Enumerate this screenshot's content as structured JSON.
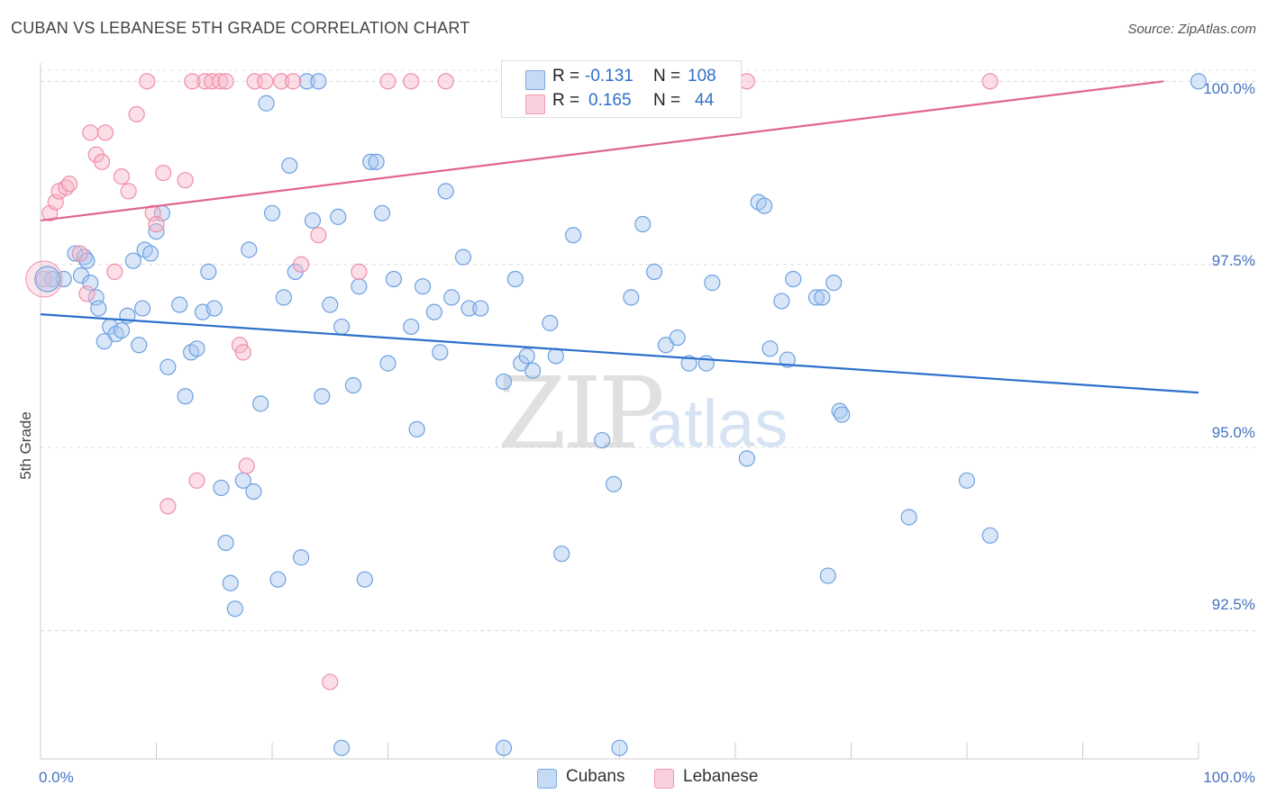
{
  "header": {
    "title": "CUBAN VS LEBANESE 5TH GRADE CORRELATION CHART",
    "source": "Source: ZipAtlas.com"
  },
  "watermark": {
    "zip": "ZIP",
    "atlas": "atlas"
  },
  "legend": {
    "cubans": {
      "r_label": "R =",
      "r_value": "-0.131",
      "n_label": "N =",
      "n_value": "108",
      "color": "#a9c8f0"
    },
    "lebanese": {
      "r_label": "R =",
      "r_value": "0.165",
      "n_label": "N =",
      "n_value": "44",
      "color": "#f6b6c8"
    }
  },
  "bottom_legend": {
    "cubans": "Cubans",
    "lebanese": "Lebanese"
  },
  "chart_data": {
    "type": "scatter",
    "ylabel": "5th Grade",
    "x_tick_labels": [
      "0.0%",
      "100.0%"
    ],
    "y_tick_labels": [
      "100.0%",
      "97.5%",
      "95.0%",
      "92.5%"
    ],
    "xlim": [
      0,
      100
    ],
    "ylim": [
      90.75,
      100.25
    ],
    "y_ticks": [
      100.0,
      97.5,
      95.0,
      92.5
    ],
    "grid": true,
    "series": [
      {
        "name": "Cubans",
        "color": "#6fa1e0",
        "fill": "#a9c8f0",
        "trend": {
          "x0": 0,
          "y0": 96.82,
          "x1": 100,
          "y1": 95.75,
          "color": "#2d6fcb"
        },
        "points": [
          [
            1,
            97.3
          ],
          [
            2,
            97.3
          ],
          [
            3,
            97.65
          ],
          [
            3.5,
            97.35
          ],
          [
            3.8,
            97.6
          ],
          [
            4,
            97.55
          ],
          [
            4.3,
            97.25
          ],
          [
            4.8,
            97.05
          ],
          [
            5,
            96.9
          ],
          [
            5.5,
            96.45
          ],
          [
            6,
            96.65
          ],
          [
            6.5,
            96.55
          ],
          [
            7,
            96.6
          ],
          [
            7.5,
            96.8
          ],
          [
            8,
            97.55
          ],
          [
            8.5,
            96.4
          ],
          [
            8.8,
            96.9
          ],
          [
            9,
            97.7
          ],
          [
            9.5,
            97.65
          ],
          [
            10,
            97.95
          ],
          [
            10.5,
            98.2
          ],
          [
            11,
            96.1
          ],
          [
            12,
            96.95
          ],
          [
            12.5,
            95.7
          ],
          [
            13,
            96.3
          ],
          [
            13.5,
            96.35
          ],
          [
            14,
            96.85
          ],
          [
            14.5,
            97.4
          ],
          [
            15,
            96.9
          ],
          [
            15.6,
            94.45
          ],
          [
            16,
            93.7
          ],
          [
            16.4,
            93.15
          ],
          [
            16.8,
            92.8
          ],
          [
            17.5,
            94.55
          ],
          [
            18,
            97.7
          ],
          [
            18.4,
            94.4
          ],
          [
            19,
            95.6
          ],
          [
            19.5,
            99.7
          ],
          [
            20,
            98.2
          ],
          [
            20.5,
            93.2
          ],
          [
            21,
            97.05
          ],
          [
            21.5,
            98.85
          ],
          [
            22,
            97.4
          ],
          [
            22.5,
            93.5
          ],
          [
            23,
            100
          ],
          [
            23.5,
            98.1
          ],
          [
            24,
            100
          ],
          [
            24.3,
            95.7
          ],
          [
            25,
            96.95
          ],
          [
            25.7,
            98.15
          ],
          [
            26,
            96.65
          ],
          [
            27,
            95.85
          ],
          [
            27.5,
            97.2
          ],
          [
            28,
            93.2
          ],
          [
            28.5,
            98.9
          ],
          [
            29,
            98.9
          ],
          [
            29.5,
            98.2
          ],
          [
            30,
            96.15
          ],
          [
            30.5,
            97.3
          ],
          [
            32,
            96.65
          ],
          [
            32.5,
            95.25
          ],
          [
            33,
            97.2
          ],
          [
            34,
            96.85
          ],
          [
            34.5,
            96.3
          ],
          [
            35,
            98.5
          ],
          [
            35.5,
            97.05
          ],
          [
            36.5,
            97.6
          ],
          [
            37,
            96.9
          ],
          [
            38,
            96.9
          ],
          [
            40,
            95.9
          ],
          [
            41,
            97.3
          ],
          [
            41.5,
            96.15
          ],
          [
            42,
            96.25
          ],
          [
            42.5,
            96.05
          ],
          [
            44,
            96.7
          ],
          [
            44.5,
            96.25
          ],
          [
            45,
            93.55
          ],
          [
            46,
            97.9
          ],
          [
            48.5,
            95.1
          ],
          [
            49.5,
            94.5
          ],
          [
            50,
            90.9
          ],
          [
            51,
            97.05
          ],
          [
            52,
            98.05
          ],
          [
            53,
            97.4
          ],
          [
            54,
            96.4
          ],
          [
            55,
            96.5
          ],
          [
            56,
            96.15
          ],
          [
            57.5,
            96.15
          ],
          [
            58,
            97.25
          ],
          [
            61,
            94.85
          ],
          [
            62,
            98.35
          ],
          [
            62.5,
            98.3
          ],
          [
            63,
            96.35
          ],
          [
            64,
            97.0
          ],
          [
            64.5,
            96.2
          ],
          [
            65,
            97.3
          ],
          [
            67,
            97.05
          ],
          [
            67.5,
            97.05
          ],
          [
            68,
            93.25
          ],
          [
            68.5,
            97.25
          ],
          [
            69,
            95.5
          ],
          [
            69.2,
            95.45
          ],
          [
            75,
            94.05
          ],
          [
            80,
            94.55
          ],
          [
            82,
            93.8
          ],
          [
            40,
            90.9
          ],
          [
            26,
            90.9
          ],
          [
            100,
            100
          ]
        ]
      },
      {
        "name": "Lebanese",
        "color": "#ee8fab",
        "fill": "#f6b6c8",
        "trend": {
          "x0": 0,
          "y0": 98.1,
          "x1": 97,
          "y1": 100.0,
          "color": "#e0668f"
        },
        "points": [
          [
            0.3,
            97.3
          ],
          [
            0.8,
            98.2
          ],
          [
            1.3,
            98.35
          ],
          [
            1.6,
            98.5
          ],
          [
            2.2,
            98.55
          ],
          [
            2.5,
            98.6
          ],
          [
            3.4,
            97.65
          ],
          [
            4,
            97.1
          ],
          [
            4.3,
            99.3
          ],
          [
            4.8,
            99.0
          ],
          [
            5.3,
            98.9
          ],
          [
            5.6,
            99.3
          ],
          [
            6.4,
            97.4
          ],
          [
            7,
            98.7
          ],
          [
            7.6,
            98.5
          ],
          [
            8.3,
            99.55
          ],
          [
            9.2,
            100
          ],
          [
            9.7,
            98.2
          ],
          [
            10,
            98.05
          ],
          [
            10.6,
            98.75
          ],
          [
            12.5,
            98.65
          ],
          [
            13.1,
            100
          ],
          [
            14.2,
            100
          ],
          [
            14.8,
            100
          ],
          [
            15.5,
            100
          ],
          [
            16,
            100
          ],
          [
            17.2,
            96.4
          ],
          [
            17.5,
            96.3
          ],
          [
            17.8,
            94.75
          ],
          [
            18.5,
            100
          ],
          [
            19.4,
            100
          ],
          [
            20.8,
            100
          ],
          [
            21.8,
            100
          ],
          [
            22.5,
            97.5
          ],
          [
            24,
            97.9
          ],
          [
            25,
            91.8
          ],
          [
            27.5,
            97.4
          ],
          [
            30,
            100
          ],
          [
            32,
            100
          ],
          [
            35,
            100
          ],
          [
            11,
            94.2
          ],
          [
            13.5,
            94.55
          ],
          [
            61,
            100
          ],
          [
            82,
            100
          ]
        ]
      }
    ]
  }
}
